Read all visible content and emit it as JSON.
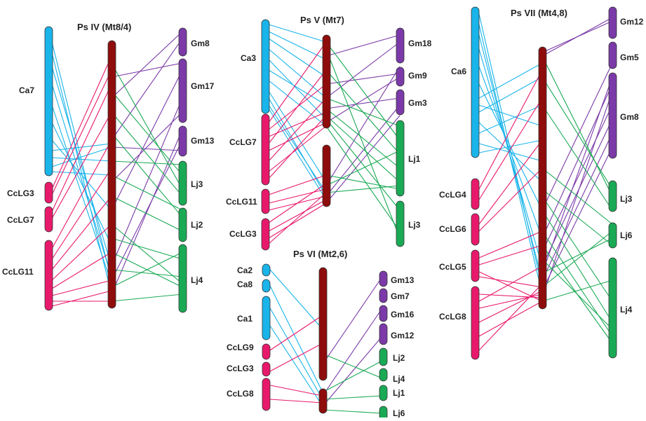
{
  "colors": {
    "chickpea": "#19b4ea",
    "pigeonpea": "#e8196b",
    "pea": "#8e0c0c",
    "soybean": "#7b3aa8",
    "lotus": "#1aaa55"
  },
  "panels": [
    {
      "title": "Ps IV (Mt8/4)",
      "labels": [
        "Ca7",
        "CcLG3",
        "CcLG7",
        "CcLG11",
        "Gm8",
        "Gm17",
        "Gm13",
        "Lj3",
        "Lj2",
        "Lj4"
      ]
    },
    {
      "title": "Ps V (Mt7)",
      "labels": [
        "Ca3",
        "CcLG7",
        "CcLG11",
        "CcLG3",
        "Gm18",
        "Gm9",
        "Gm3",
        "Lj1",
        "Lj3"
      ]
    },
    {
      "title": "Ps VI (Mt2,6)",
      "labels": [
        "Ca2",
        "Ca8",
        "Ca1",
        "CcLG9",
        "CcLG3",
        "CcLG8",
        "Gm13",
        "Gm7",
        "Gm16",
        "Gm12",
        "Lj2",
        "Lj4",
        "Lj1",
        "Lj6"
      ]
    },
    {
      "title": "Ps VII (Mt4,8)",
      "labels": [
        "Ca6",
        "CcLG4",
        "CcLG6",
        "CcLG5",
        "CcLG8",
        "Gm12",
        "Gm5",
        "Gm8",
        "Lj3",
        "Lj6",
        "Lj4"
      ]
    }
  ]
}
